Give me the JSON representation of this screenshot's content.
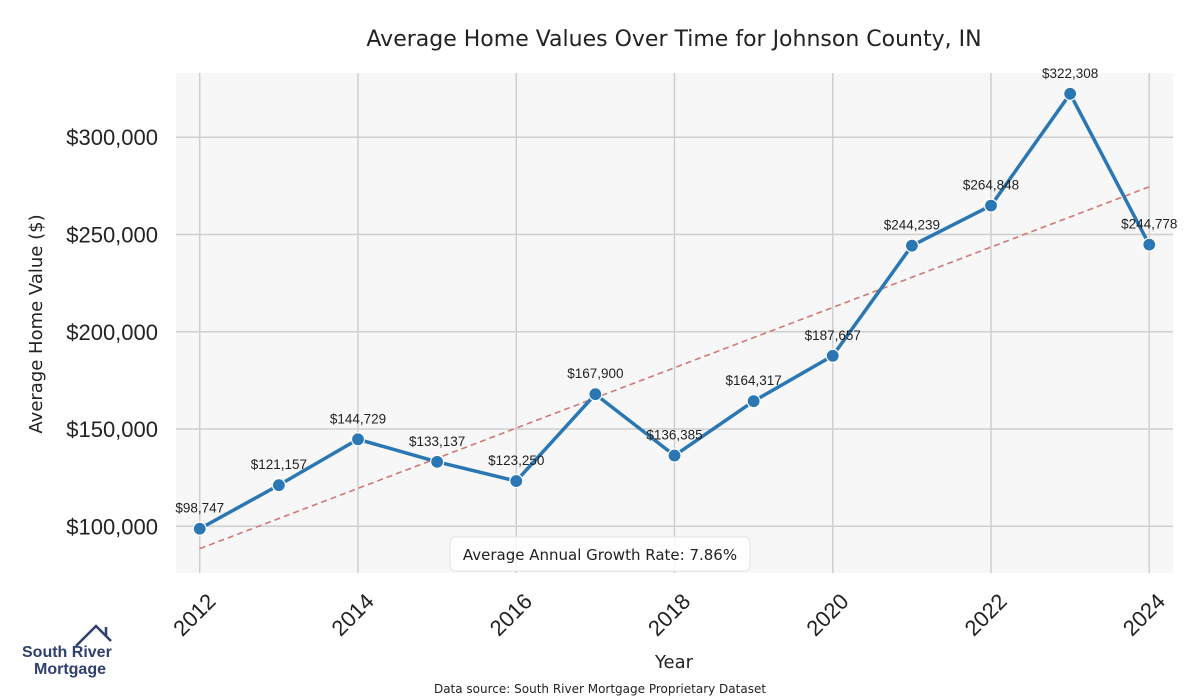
{
  "chart_data": {
    "type": "line",
    "title": "Average Home Values Over Time for Johnson County, IN",
    "xlabel": "Year",
    "ylabel": "Average Home Value ($)",
    "x": [
      2012,
      2013,
      2014,
      2015,
      2016,
      2017,
      2018,
      2019,
      2020,
      2021,
      2022,
      2023,
      2024
    ],
    "series": [
      {
        "name": "Average Home Value",
        "values": [
          98747,
          121157,
          144729,
          133137,
          123250,
          167900,
          136385,
          164317,
          187657,
          244239,
          264848,
          322308,
          244778
        ],
        "labels": [
          "$98,747",
          "$121,157",
          "$144,729",
          "$133,137",
          "$123,250",
          "$167,900",
          "$136,385",
          "$164,317",
          "$187,657",
          "$244,239",
          "$264,848",
          "$322,308",
          "$244,778"
        ],
        "color": "#2a77b4"
      }
    ],
    "trendline": {
      "name": "Trend",
      "start": 88500,
      "end": 274500,
      "color": "#d07878",
      "style": "dashed"
    },
    "xlim": [
      2011.7,
      2024.3
    ],
    "ylim": [
      76000,
      333000
    ],
    "xticks": [
      2012,
      2014,
      2016,
      2018,
      2020,
      2022,
      2024
    ],
    "xtick_labels": [
      "2012",
      "2014",
      "2016",
      "2018",
      "2020",
      "2022",
      "2024"
    ],
    "yticks": [
      100000,
      150000,
      200000,
      250000,
      300000
    ],
    "ytick_labels": [
      "$100,000",
      "$150,000",
      "$200,000",
      "$250,000",
      "$300,000"
    ],
    "grid": true,
    "background": "#f7f7f7",
    "annotation": "Average Annual Growth Rate: 7.86%"
  },
  "footer": {
    "source": "Data source: South River Mortgage Proprietary Dataset"
  },
  "logo": {
    "line1": "South River",
    "line2": "Mortgage",
    "color": "#2f3f6e"
  }
}
